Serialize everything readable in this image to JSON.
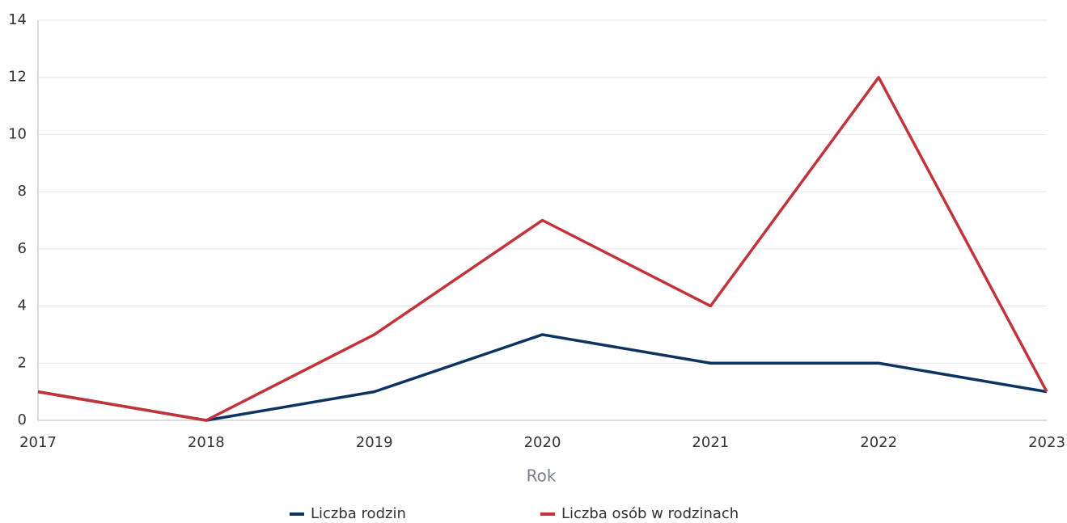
{
  "chart_data": {
    "type": "line",
    "x": [
      2017,
      2018,
      2019,
      2020,
      2021,
      2022,
      2023
    ],
    "series": [
      {
        "name": "Liczba rodzin",
        "color": "#0d3461",
        "values": [
          1,
          0,
          1,
          3,
          2,
          2,
          1
        ]
      },
      {
        "name": "Liczba osób w rodzinach",
        "color": "#c1343a",
        "values": [
          1,
          0,
          3,
          7,
          4,
          12,
          1
        ]
      }
    ],
    "xlabel": "Rok",
    "xlim": [
      2017,
      2023
    ],
    "xticks": [
      2017,
      2018,
      2019,
      2020,
      2021,
      2022,
      2023
    ],
    "ylim": [
      0,
      14
    ],
    "yticks": [
      0,
      2,
      4,
      6,
      8,
      10,
      12,
      14
    ],
    "grid": true,
    "legend": "bottom"
  }
}
